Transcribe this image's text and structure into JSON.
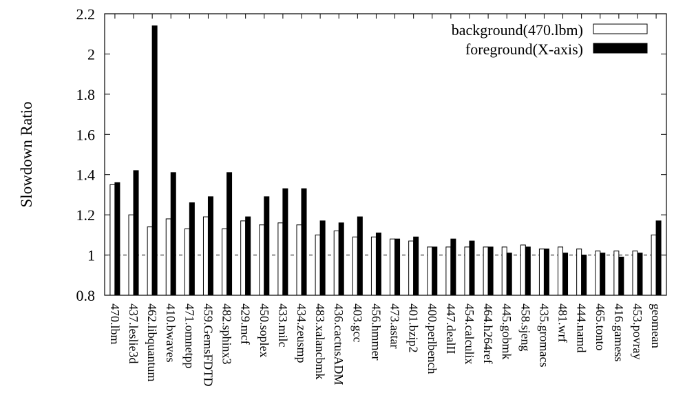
{
  "chart_data": {
    "type": "bar",
    "ylabel": "Slowdown Ratio",
    "xlabel": "",
    "ylim": [
      0.8,
      2.2
    ],
    "yticks": [
      "0.8",
      "1",
      "1.2",
      "1.4",
      "1.6",
      "1.8",
      "2",
      "2.2"
    ],
    "reference_line": 1,
    "grid": false,
    "legend_position": "top-right",
    "categories": [
      "470.lbm",
      "437.leslie3d",
      "462.libquantum",
      "410.bwaves",
      "471.omnetpp",
      "459.GemsFDTD",
      "482.sphinx3",
      "429.mcf",
      "450.soplex",
      "433.milc",
      "434.zeusmp",
      "483.xalancbmk",
      "436.cactusADM",
      "403.gcc",
      "456.hmmer",
      "473.astar",
      "401.bzip2",
      "400.perlbench",
      "447.dealII",
      "454.calculix",
      "464.h264ref",
      "445.gobmk",
      "458.sjeng",
      "435.gromacs",
      "481.wrf",
      "444.namd",
      "465.tonto",
      "416.gamess",
      "453.povray",
      "geomean"
    ],
    "series": [
      {
        "name": "background(470.lbm)",
        "color": "#ffffff",
        "values": [
          1.35,
          1.2,
          1.14,
          1.18,
          1.13,
          1.19,
          1.13,
          1.17,
          1.15,
          1.16,
          1.15,
          1.1,
          1.12,
          1.09,
          1.09,
          1.08,
          1.07,
          1.04,
          1.04,
          1.04,
          1.04,
          1.04,
          1.05,
          1.03,
          1.04,
          1.03,
          1.02,
          1.02,
          1.02,
          1.1
        ]
      },
      {
        "name": "foreground(X-axis)",
        "color": "#000000",
        "values": [
          1.36,
          1.42,
          2.14,
          1.41,
          1.26,
          1.29,
          1.41,
          1.19,
          1.29,
          1.33,
          1.33,
          1.17,
          1.16,
          1.19,
          1.11,
          1.08,
          1.09,
          1.04,
          1.08,
          1.07,
          1.04,
          1.01,
          1.04,
          1.03,
          1.01,
          1.0,
          1.01,
          0.99,
          1.01,
          1.17
        ]
      }
    ]
  }
}
